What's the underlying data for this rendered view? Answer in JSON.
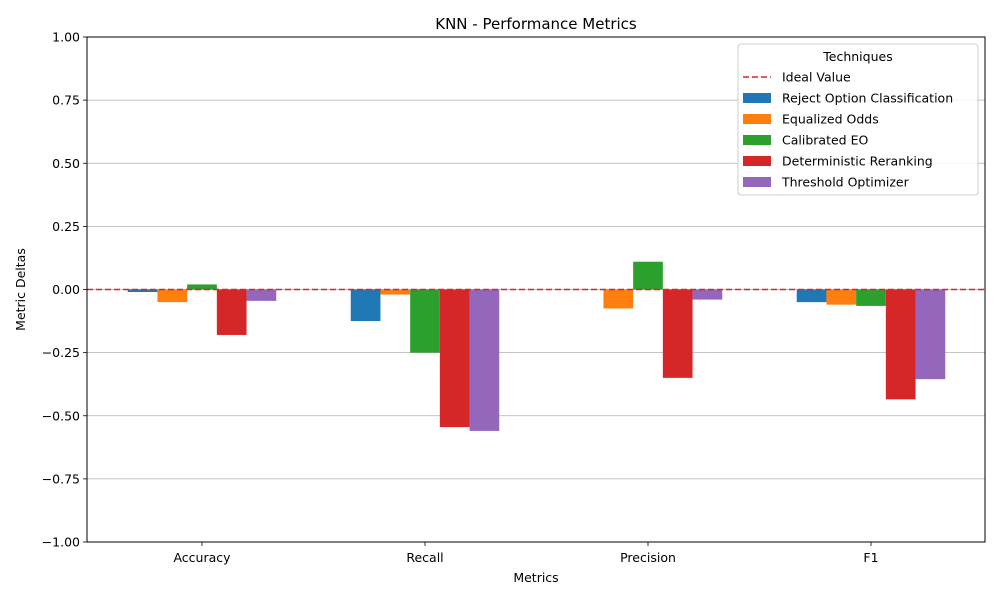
{
  "chart_data": {
    "type": "bar",
    "title": "KNN - Performance Metrics",
    "xlabel": "Metrics",
    "ylabel": "Metric Deltas",
    "ylim": [
      -1.0,
      1.0
    ],
    "yticks": [
      "−1.00",
      "−0.75",
      "−0.50",
      "−0.25",
      "0.00",
      "0.25",
      "0.50",
      "0.75",
      "1.00"
    ],
    "ytick_values": [
      -1.0,
      -0.75,
      -0.5,
      -0.25,
      0.0,
      0.25,
      0.5,
      0.75,
      1.0
    ],
    "grid": "horizontal",
    "categories": [
      "Accuracy",
      "Recall",
      "Precision",
      "F1"
    ],
    "reference_line": {
      "label": "Ideal Value",
      "value": 0.0,
      "color": "#d62728",
      "style": "dashed"
    },
    "legend": {
      "title": "Techniques",
      "placement": "top-right"
    },
    "series": [
      {
        "name": "Reject Option Classification",
        "color": "#1f77b4",
        "values": [
          -0.01,
          -0.125,
          0.0,
          -0.05
        ]
      },
      {
        "name": "Equalized Odds",
        "color": "#ff7f0e",
        "values": [
          -0.05,
          -0.02,
          -0.075,
          -0.06
        ]
      },
      {
        "name": "Calibrated EO",
        "color": "#2ca02c",
        "values": [
          0.02,
          -0.25,
          0.11,
          -0.065
        ]
      },
      {
        "name": "Deterministic Reranking",
        "color": "#d62728",
        "values": [
          -0.18,
          -0.545,
          -0.35,
          -0.435
        ]
      },
      {
        "name": "Threshold Optimizer",
        "color": "#9467bd",
        "values": [
          -0.045,
          -0.56,
          -0.04,
          -0.355
        ]
      }
    ]
  }
}
